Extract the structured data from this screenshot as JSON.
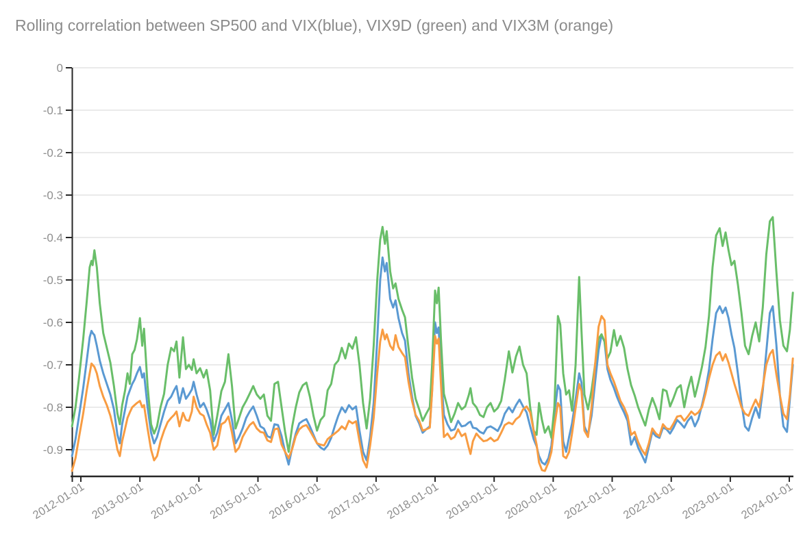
{
  "chart_data": {
    "type": "line",
    "title": "Rolling correlation between SP500 and VIX(blue), VIX9D (green) and VIX3M (orange)",
    "xlabel": "",
    "ylabel": "",
    "x_unit": "decimal_year",
    "x_range": [
      2011.85,
      2024.06
    ],
    "y_range": [
      -0.963,
      0
    ],
    "grid": true,
    "legend_position": "none",
    "colors": {
      "blue": "#5a99d2",
      "green": "#69be69",
      "orange": "#f89c42",
      "axis": "#262626",
      "grid_line": "#e4e4e4",
      "tick_label": "#8e8e8e",
      "title": "#8b8b8b",
      "background": "#ffffff"
    },
    "y_ticks": [
      {
        "value": 0,
        "label": "0"
      },
      {
        "value": -0.1,
        "label": "-0.1"
      },
      {
        "value": -0.2,
        "label": "-0.2"
      },
      {
        "value": -0.3,
        "label": "-0.3"
      },
      {
        "value": -0.4,
        "label": "-0.4"
      },
      {
        "value": -0.5,
        "label": "-0.5"
      },
      {
        "value": -0.6,
        "label": "-0.6"
      },
      {
        "value": -0.7,
        "label": "-0.7"
      },
      {
        "value": -0.8,
        "label": "-0.8"
      },
      {
        "value": -0.9,
        "label": "-0.9"
      }
    ],
    "x_ticks": [
      {
        "year": 2012,
        "label": "2012-01-01"
      },
      {
        "year": 2013,
        "label": "2013-01-01"
      },
      {
        "year": 2014,
        "label": "2014-01-01"
      },
      {
        "year": 2015,
        "label": "2015-01-01"
      },
      {
        "year": 2016,
        "label": "2016-01-01"
      },
      {
        "year": 2017,
        "label": "2017-01-01"
      },
      {
        "year": 2018,
        "label": "2018-01-01"
      },
      {
        "year": 2019,
        "label": "2019-01-01"
      },
      {
        "year": 2020,
        "label": "2020-01-01"
      },
      {
        "year": 2021,
        "label": "2021-01-01"
      },
      {
        "year": 2022,
        "label": "2022-01-01"
      },
      {
        "year": 2023,
        "label": "2023-01-01"
      },
      {
        "year": 2024,
        "label": "2024-01-01"
      }
    ],
    "x": [
      2011.85,
      2011.91,
      2011.97,
      2012.04,
      2012.1,
      2012.15,
      2012.18,
      2012.2,
      2012.23,
      2012.27,
      2012.32,
      2012.38,
      2012.44,
      2012.5,
      2012.56,
      2012.62,
      2012.66,
      2012.7,
      2012.75,
      2012.79,
      2012.83,
      2012.87,
      2012.91,
      2012.95,
      2013.0,
      2013.04,
      2013.07,
      2013.13,
      2013.19,
      2013.24,
      2013.29,
      2013.35,
      2013.41,
      2013.47,
      2013.53,
      2013.58,
      2013.62,
      2013.67,
      2013.73,
      2013.78,
      2013.83,
      2013.88,
      2013.91,
      2013.96,
      2014.02,
      2014.08,
      2014.13,
      2014.19,
      2014.25,
      2014.31,
      2014.38,
      2014.44,
      2014.5,
      2014.56,
      2014.62,
      2014.68,
      2014.74,
      2014.8,
      2014.86,
      2014.92,
      2014.98,
      2015.04,
      2015.1,
      2015.16,
      2015.22,
      2015.28,
      2015.34,
      2015.4,
      2015.46,
      2015.52,
      2015.58,
      2015.64,
      2015.7,
      2015.76,
      2015.82,
      2015.88,
      2015.94,
      2016.0,
      2016.06,
      2016.12,
      2016.18,
      2016.24,
      2016.3,
      2016.36,
      2016.42,
      2016.48,
      2016.54,
      2016.6,
      2016.66,
      2016.72,
      2016.78,
      2016.84,
      2016.9,
      2016.96,
      2017.02,
      2017.07,
      2017.11,
      2017.15,
      2017.18,
      2017.24,
      2017.29,
      2017.33,
      2017.38,
      2017.44,
      2017.49,
      2017.55,
      2017.61,
      2017.67,
      2017.73,
      2017.79,
      2017.85,
      2017.91,
      2017.95,
      2018.0,
      2018.03,
      2018.06,
      2018.1,
      2018.15,
      2018.21,
      2018.27,
      2018.33,
      2018.39,
      2018.45,
      2018.51,
      2018.57,
      2018.6,
      2018.64,
      2018.7,
      2018.76,
      2018.82,
      2018.88,
      2018.94,
      2019.0,
      2019.06,
      2019.12,
      2019.18,
      2019.25,
      2019.31,
      2019.37,
      2019.43,
      2019.49,
      2019.55,
      2019.61,
      2019.67,
      2019.72,
      2019.76,
      2019.81,
      2019.86,
      2019.92,
      2019.97,
      2020.02,
      2020.08,
      2020.12,
      2020.17,
      2020.22,
      2020.27,
      2020.32,
      2020.38,
      2020.44,
      2020.48,
      2020.53,
      2020.59,
      2020.65,
      2020.71,
      2020.77,
      2020.82,
      2020.87,
      2020.92,
      2020.97,
      2021.03,
      2021.08,
      2021.14,
      2021.2,
      2021.26,
      2021.32,
      2021.38,
      2021.44,
      2021.5,
      2021.56,
      2021.62,
      2021.68,
      2021.74,
      2021.8,
      2021.86,
      2021.92,
      2021.98,
      2022.04,
      2022.1,
      2022.16,
      2022.22,
      2022.28,
      2022.34,
      2022.4,
      2022.46,
      2022.52,
      2022.58,
      2022.64,
      2022.7,
      2022.76,
      2022.82,
      2022.87,
      2022.92,
      2022.97,
      2023.02,
      2023.07,
      2023.13,
      2023.19,
      2023.25,
      2023.31,
      2023.37,
      2023.43,
      2023.49,
      2023.55,
      2023.61,
      2023.67,
      2023.72,
      2023.78,
      2023.84,
      2023.9,
      2023.96,
      2024.01,
      2024.06
    ],
    "series": [
      {
        "name": "VIX",
        "color_note": "blue",
        "color_key": "blue",
        "values": [
          -0.915,
          -0.875,
          -0.82,
          -0.755,
          -0.69,
          -0.635,
          -0.62,
          -0.625,
          -0.63,
          -0.655,
          -0.69,
          -0.72,
          -0.745,
          -0.77,
          -0.805,
          -0.865,
          -0.885,
          -0.84,
          -0.805,
          -0.775,
          -0.76,
          -0.745,
          -0.735,
          -0.72,
          -0.705,
          -0.73,
          -0.72,
          -0.8,
          -0.86,
          -0.885,
          -0.87,
          -0.84,
          -0.81,
          -0.785,
          -0.775,
          -0.76,
          -0.75,
          -0.79,
          -0.755,
          -0.78,
          -0.77,
          -0.758,
          -0.74,
          -0.77,
          -0.8,
          -0.79,
          -0.805,
          -0.83,
          -0.88,
          -0.86,
          -0.82,
          -0.805,
          -0.79,
          -0.83,
          -0.885,
          -0.87,
          -0.85,
          -0.825,
          -0.81,
          -0.798,
          -0.82,
          -0.845,
          -0.85,
          -0.868,
          -0.872,
          -0.84,
          -0.842,
          -0.868,
          -0.905,
          -0.935,
          -0.895,
          -0.862,
          -0.838,
          -0.832,
          -0.828,
          -0.845,
          -0.865,
          -0.885,
          -0.895,
          -0.9,
          -0.89,
          -0.872,
          -0.845,
          -0.82,
          -0.8,
          -0.812,
          -0.795,
          -0.805,
          -0.798,
          -0.855,
          -0.905,
          -0.925,
          -0.87,
          -0.79,
          -0.64,
          -0.5,
          -0.447,
          -0.48,
          -0.46,
          -0.545,
          -0.565,
          -0.548,
          -0.59,
          -0.625,
          -0.643,
          -0.72,
          -0.775,
          -0.82,
          -0.838,
          -0.86,
          -0.852,
          -0.845,
          -0.76,
          -0.6,
          -0.625,
          -0.612,
          -0.72,
          -0.818,
          -0.84,
          -0.855,
          -0.852,
          -0.832,
          -0.845,
          -0.843,
          -0.836,
          -0.834,
          -0.848,
          -0.85,
          -0.858,
          -0.862,
          -0.848,
          -0.845,
          -0.85,
          -0.856,
          -0.84,
          -0.815,
          -0.8,
          -0.812,
          -0.795,
          -0.782,
          -0.798,
          -0.812,
          -0.845,
          -0.875,
          -0.892,
          -0.915,
          -0.93,
          -0.935,
          -0.92,
          -0.89,
          -0.815,
          -0.748,
          -0.76,
          -0.88,
          -0.905,
          -0.87,
          -0.838,
          -0.782,
          -0.72,
          -0.742,
          -0.845,
          -0.865,
          -0.82,
          -0.742,
          -0.665,
          -0.63,
          -0.645,
          -0.71,
          -0.735,
          -0.755,
          -0.775,
          -0.795,
          -0.812,
          -0.832,
          -0.888,
          -0.87,
          -0.895,
          -0.912,
          -0.93,
          -0.893,
          -0.858,
          -0.868,
          -0.872,
          -0.848,
          -0.852,
          -0.862,
          -0.848,
          -0.83,
          -0.838,
          -0.848,
          -0.832,
          -0.822,
          -0.845,
          -0.828,
          -0.795,
          -0.758,
          -0.712,
          -0.64,
          -0.578,
          -0.562,
          -0.578,
          -0.565,
          -0.59,
          -0.628,
          -0.66,
          -0.722,
          -0.79,
          -0.845,
          -0.855,
          -0.825,
          -0.8,
          -0.825,
          -0.76,
          -0.67,
          -0.578,
          -0.562,
          -0.652,
          -0.772,
          -0.845,
          -0.858,
          -0.78,
          -0.7
        ]
      },
      {
        "name": "VIX9D",
        "color_note": "green",
        "color_key": "green",
        "values": [
          -0.845,
          -0.8,
          -0.73,
          -0.64,
          -0.55,
          -0.47,
          -0.455,
          -0.465,
          -0.43,
          -0.47,
          -0.555,
          -0.625,
          -0.66,
          -0.695,
          -0.75,
          -0.815,
          -0.84,
          -0.795,
          -0.76,
          -0.72,
          -0.745,
          -0.675,
          -0.665,
          -0.64,
          -0.59,
          -0.655,
          -0.615,
          -0.75,
          -0.84,
          -0.862,
          -0.845,
          -0.8,
          -0.768,
          -0.7,
          -0.66,
          -0.668,
          -0.645,
          -0.73,
          -0.635,
          -0.71,
          -0.7,
          -0.712,
          -0.687,
          -0.72,
          -0.708,
          -0.73,
          -0.712,
          -0.76,
          -0.865,
          -0.82,
          -0.762,
          -0.74,
          -0.675,
          -0.75,
          -0.85,
          -0.825,
          -0.8,
          -0.785,
          -0.768,
          -0.75,
          -0.77,
          -0.78,
          -0.77,
          -0.82,
          -0.832,
          -0.745,
          -0.74,
          -0.8,
          -0.858,
          -0.905,
          -0.845,
          -0.8,
          -0.765,
          -0.748,
          -0.742,
          -0.775,
          -0.82,
          -0.855,
          -0.83,
          -0.82,
          -0.76,
          -0.745,
          -0.7,
          -0.69,
          -0.66,
          -0.685,
          -0.65,
          -0.662,
          -0.635,
          -0.7,
          -0.79,
          -0.85,
          -0.78,
          -0.655,
          -0.5,
          -0.405,
          -0.375,
          -0.415,
          -0.385,
          -0.48,
          -0.52,
          -0.508,
          -0.545,
          -0.57,
          -0.588,
          -0.66,
          -0.73,
          -0.78,
          -0.805,
          -0.832,
          -0.815,
          -0.8,
          -0.7,
          -0.525,
          -0.555,
          -0.518,
          -0.64,
          -0.768,
          -0.8,
          -0.835,
          -0.815,
          -0.79,
          -0.805,
          -0.798,
          -0.772,
          -0.755,
          -0.79,
          -0.8,
          -0.818,
          -0.823,
          -0.8,
          -0.79,
          -0.81,
          -0.802,
          -0.785,
          -0.735,
          -0.668,
          -0.718,
          -0.68,
          -0.657,
          -0.7,
          -0.72,
          -0.8,
          -0.855,
          -0.865,
          -0.79,
          -0.83,
          -0.86,
          -0.845,
          -0.872,
          -0.8,
          -0.585,
          -0.605,
          -0.72,
          -0.77,
          -0.76,
          -0.808,
          -0.7,
          -0.493,
          -0.62,
          -0.77,
          -0.805,
          -0.76,
          -0.7,
          -0.638,
          -0.628,
          -0.645,
          -0.685,
          -0.67,
          -0.618,
          -0.655,
          -0.632,
          -0.66,
          -0.71,
          -0.748,
          -0.772,
          -0.8,
          -0.822,
          -0.843,
          -0.805,
          -0.778,
          -0.8,
          -0.828,
          -0.758,
          -0.762,
          -0.798,
          -0.778,
          -0.755,
          -0.748,
          -0.8,
          -0.758,
          -0.728,
          -0.775,
          -0.742,
          -0.705,
          -0.658,
          -0.585,
          -0.47,
          -0.395,
          -0.378,
          -0.42,
          -0.388,
          -0.43,
          -0.465,
          -0.455,
          -0.512,
          -0.578,
          -0.655,
          -0.675,
          -0.632,
          -0.6,
          -0.645,
          -0.565,
          -0.44,
          -0.362,
          -0.352,
          -0.48,
          -0.595,
          -0.655,
          -0.668,
          -0.617,
          -0.53
        ]
      },
      {
        "name": "VIX3M",
        "color_note": "orange",
        "color_key": "orange",
        "values": [
          -0.95,
          -0.92,
          -0.87,
          -0.815,
          -0.76,
          -0.72,
          -0.697,
          -0.7,
          -0.705,
          -0.72,
          -0.75,
          -0.775,
          -0.795,
          -0.82,
          -0.855,
          -0.9,
          -0.915,
          -0.88,
          -0.85,
          -0.825,
          -0.812,
          -0.8,
          -0.795,
          -0.79,
          -0.785,
          -0.8,
          -0.795,
          -0.85,
          -0.9,
          -0.925,
          -0.915,
          -0.88,
          -0.855,
          -0.835,
          -0.825,
          -0.818,
          -0.81,
          -0.845,
          -0.813,
          -0.83,
          -0.832,
          -0.81,
          -0.775,
          -0.8,
          -0.815,
          -0.82,
          -0.84,
          -0.86,
          -0.9,
          -0.89,
          -0.84,
          -0.835,
          -0.822,
          -0.86,
          -0.905,
          -0.895,
          -0.87,
          -0.855,
          -0.842,
          -0.835,
          -0.85,
          -0.858,
          -0.86,
          -0.878,
          -0.882,
          -0.852,
          -0.85,
          -0.888,
          -0.905,
          -0.92,
          -0.898,
          -0.868,
          -0.852,
          -0.845,
          -0.842,
          -0.855,
          -0.87,
          -0.885,
          -0.888,
          -0.89,
          -0.875,
          -0.868,
          -0.862,
          -0.855,
          -0.845,
          -0.852,
          -0.832,
          -0.838,
          -0.833,
          -0.88,
          -0.925,
          -0.942,
          -0.89,
          -0.825,
          -0.72,
          -0.645,
          -0.617,
          -0.64,
          -0.628,
          -0.655,
          -0.665,
          -0.63,
          -0.658,
          -0.672,
          -0.682,
          -0.74,
          -0.785,
          -0.818,
          -0.832,
          -0.855,
          -0.852,
          -0.848,
          -0.762,
          -0.632,
          -0.65,
          -0.638,
          -0.745,
          -0.87,
          -0.862,
          -0.875,
          -0.87,
          -0.852,
          -0.868,
          -0.862,
          -0.895,
          -0.91,
          -0.88,
          -0.862,
          -0.872,
          -0.88,
          -0.878,
          -0.872,
          -0.88,
          -0.876,
          -0.86,
          -0.842,
          -0.836,
          -0.84,
          -0.828,
          -0.822,
          -0.805,
          -0.798,
          -0.812,
          -0.855,
          -0.888,
          -0.93,
          -0.948,
          -0.95,
          -0.93,
          -0.905,
          -0.845,
          -0.79,
          -0.8,
          -0.915,
          -0.92,
          -0.905,
          -0.862,
          -0.802,
          -0.745,
          -0.762,
          -0.855,
          -0.87,
          -0.8,
          -0.7,
          -0.61,
          -0.585,
          -0.595,
          -0.7,
          -0.72,
          -0.74,
          -0.76,
          -0.785,
          -0.8,
          -0.82,
          -0.865,
          -0.858,
          -0.882,
          -0.9,
          -0.912,
          -0.885,
          -0.85,
          -0.862,
          -0.868,
          -0.84,
          -0.85,
          -0.852,
          -0.838,
          -0.822,
          -0.82,
          -0.832,
          -0.822,
          -0.81,
          -0.818,
          -0.812,
          -0.8,
          -0.768,
          -0.732,
          -0.7,
          -0.678,
          -0.67,
          -0.69,
          -0.675,
          -0.695,
          -0.72,
          -0.745,
          -0.772,
          -0.8,
          -0.815,
          -0.82,
          -0.8,
          -0.782,
          -0.8,
          -0.752,
          -0.7,
          -0.675,
          -0.665,
          -0.722,
          -0.772,
          -0.815,
          -0.828,
          -0.77,
          -0.685
        ]
      }
    ]
  }
}
